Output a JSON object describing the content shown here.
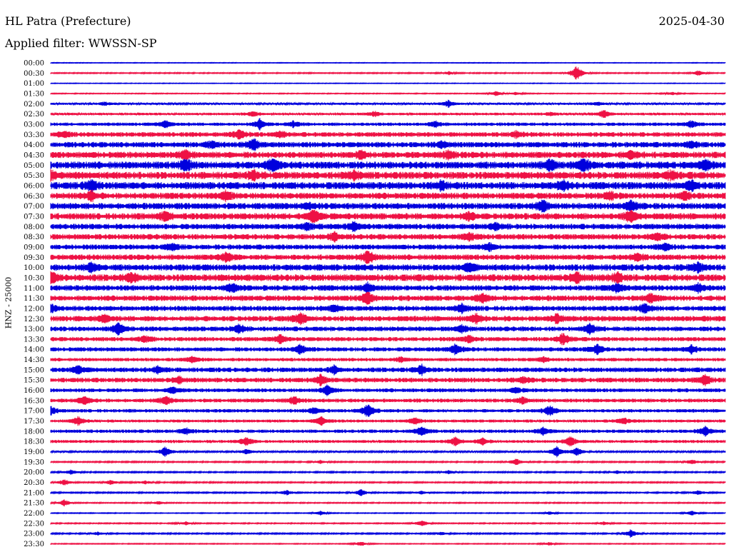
{
  "header": {
    "station": "HL Patra (Prefecture)",
    "date": "2025-04-30",
    "filter": "Applied filter: WWSSN-SP"
  },
  "chart_data": {
    "type": "line",
    "title": "",
    "ylabel": "HNZ - 25000",
    "xlabel": "",
    "grid": false,
    "legend": "none",
    "colors": {
      "blue": "#0000dd",
      "red": "#ee1144"
    },
    "rows": [
      {
        "label": "00:00",
        "color": "blue",
        "noise": 0.3,
        "events": []
      },
      {
        "label": "00:30",
        "color": "red",
        "noise": 0.5,
        "events": [
          [
            0.78,
            10
          ],
          [
            0.96,
            3
          ],
          [
            0.59,
            2
          ]
        ]
      },
      {
        "label": "01:00",
        "color": "blue",
        "noise": 0.3,
        "events": []
      },
      {
        "label": "01:30",
        "color": "red",
        "noise": 0.4,
        "events": [
          [
            0.66,
            3
          ],
          [
            0.69,
            2
          ],
          [
            0.92,
            2
          ]
        ]
      },
      {
        "label": "02:00",
        "color": "blue",
        "noise": 1.0,
        "events": [
          [
            0.59,
            4
          ],
          [
            0.81,
            2
          ],
          [
            0.08,
            2
          ]
        ]
      },
      {
        "label": "02:30",
        "color": "red",
        "noise": 1.2,
        "events": [
          [
            0.82,
            5
          ],
          [
            0.3,
            3
          ],
          [
            0.48,
            3
          ],
          [
            0.74,
            2
          ]
        ]
      },
      {
        "label": "03:00",
        "color": "blue",
        "noise": 1.6,
        "events": [
          [
            0.31,
            6
          ],
          [
            0.17,
            4
          ],
          [
            0.36,
            3
          ],
          [
            0.95,
            4
          ],
          [
            0.57,
            3
          ]
        ]
      },
      {
        "label": "03:30",
        "color": "red",
        "noise": 2.2,
        "events": [
          [
            0.28,
            5
          ],
          [
            0.34,
            4
          ],
          [
            0.02,
            3
          ],
          [
            0.69,
            3
          ]
        ]
      },
      {
        "label": "04:00",
        "color": "blue",
        "noise": 2.6,
        "events": [
          [
            0.3,
            7
          ],
          [
            0.24,
            4
          ],
          [
            0.58,
            4
          ],
          [
            0.95,
            4
          ]
        ]
      },
      {
        "label": "04:30",
        "color": "red",
        "noise": 3.0,
        "events": [
          [
            0.2,
            5
          ],
          [
            0.86,
            5
          ],
          [
            0.46,
            4
          ],
          [
            0.59,
            4
          ]
        ]
      },
      {
        "label": "05:00",
        "color": "blue",
        "noise": 3.4,
        "events": [
          [
            0.33,
            9
          ],
          [
            0.2,
            7
          ],
          [
            0.79,
            9
          ],
          [
            0.74,
            6
          ],
          [
            0.97,
            7
          ]
        ]
      },
      {
        "label": "05:30",
        "color": "red",
        "noise": 3.4,
        "events": [
          [
            0.0,
            6
          ],
          [
            0.3,
            5
          ],
          [
            0.45,
            5
          ],
          [
            0.92,
            5
          ]
        ]
      },
      {
        "label": "06:00",
        "color": "blue",
        "noise": 3.4,
        "events": [
          [
            0.06,
            6
          ],
          [
            0.58,
            5
          ],
          [
            0.95,
            6
          ],
          [
            0.76,
            5
          ]
        ]
      },
      {
        "label": "06:30",
        "color": "red",
        "noise": 3.0,
        "events": [
          [
            0.06,
            5
          ],
          [
            0.26,
            5
          ],
          [
            0.83,
            4
          ],
          [
            0.94,
            4
          ]
        ]
      },
      {
        "label": "07:00",
        "color": "blue",
        "noise": 3.0,
        "events": [
          [
            0.73,
            7
          ],
          [
            0.86,
            6
          ],
          [
            0.38,
            4
          ]
        ]
      },
      {
        "label": "07:30",
        "color": "red",
        "noise": 3.0,
        "events": [
          [
            0.39,
            8
          ],
          [
            0.17,
            6
          ],
          [
            0.86,
            8
          ],
          [
            0.62,
            5
          ]
        ]
      },
      {
        "label": "08:00",
        "color": "blue",
        "noise": 2.6,
        "events": [
          [
            0.45,
            5
          ],
          [
            0.38,
            4
          ],
          [
            0.66,
            4
          ]
        ]
      },
      {
        "label": "08:30",
        "color": "red",
        "noise": 2.6,
        "events": [
          [
            0.42,
            5
          ],
          [
            0.62,
            4
          ],
          [
            0.9,
            4
          ]
        ]
      },
      {
        "label": "09:00",
        "color": "blue",
        "noise": 2.4,
        "events": [
          [
            0.18,
            4
          ],
          [
            0.65,
            4
          ],
          [
            0.91,
            4
          ]
        ]
      },
      {
        "label": "09:30",
        "color": "red",
        "noise": 2.6,
        "events": [
          [
            0.47,
            8
          ],
          [
            0.26,
            5
          ],
          [
            0.87,
            5
          ]
        ]
      },
      {
        "label": "10:00",
        "color": "blue",
        "noise": 3.0,
        "events": [
          [
            0.06,
            5
          ],
          [
            0.62,
            5
          ],
          [
            0.96,
            5
          ]
        ]
      },
      {
        "label": "10:30",
        "color": "red",
        "noise": 3.2,
        "events": [
          [
            0.0,
            7
          ],
          [
            0.78,
            7
          ],
          [
            0.12,
            5
          ],
          [
            0.84,
            5
          ]
        ]
      },
      {
        "label": "11:00",
        "color": "blue",
        "noise": 2.6,
        "events": [
          [
            0.27,
            6
          ],
          [
            0.47,
            5
          ],
          [
            0.84,
            5
          ],
          [
            0.96,
            5
          ]
        ]
      },
      {
        "label": "11:30",
        "color": "red",
        "noise": 2.6,
        "events": [
          [
            0.47,
            8
          ],
          [
            0.64,
            5
          ],
          [
            0.89,
            5
          ]
        ]
      },
      {
        "label": "12:00",
        "color": "blue",
        "noise": 2.4,
        "events": [
          [
            0.0,
            5
          ],
          [
            0.61,
            5
          ],
          [
            0.88,
            5
          ],
          [
            0.42,
            4
          ]
        ]
      },
      {
        "label": "12:30",
        "color": "red",
        "noise": 2.6,
        "events": [
          [
            0.37,
            8
          ],
          [
            0.63,
            5
          ],
          [
            0.75,
            5
          ],
          [
            0.08,
            4
          ]
        ]
      },
      {
        "label": "13:00",
        "color": "blue",
        "noise": 2.2,
        "events": [
          [
            0.1,
            7
          ],
          [
            0.28,
            5
          ],
          [
            0.8,
            6
          ],
          [
            0.61,
            4
          ]
        ]
      },
      {
        "label": "13:30",
        "color": "red",
        "noise": 2.0,
        "events": [
          [
            0.34,
            5
          ],
          [
            0.76,
            7
          ],
          [
            0.14,
            4
          ],
          [
            0.62,
            4
          ]
        ]
      },
      {
        "label": "14:00",
        "color": "blue",
        "noise": 2.0,
        "events": [
          [
            0.37,
            6
          ],
          [
            0.6,
            6
          ],
          [
            0.81,
            6
          ],
          [
            0.95,
            4
          ]
        ]
      },
      {
        "label": "14:30",
        "color": "red",
        "noise": 1.6,
        "events": [
          [
            0.21,
            4
          ],
          [
            0.52,
            3
          ],
          [
            0.73,
            3
          ]
        ]
      },
      {
        "label": "15:00",
        "color": "blue",
        "noise": 2.2,
        "events": [
          [
            0.04,
            5
          ],
          [
            0.16,
            4
          ],
          [
            0.55,
            5
          ],
          [
            0.42,
            4
          ]
        ]
      },
      {
        "label": "15:30",
        "color": "red",
        "noise": 2.2,
        "events": [
          [
            0.4,
            6
          ],
          [
            0.97,
            7
          ],
          [
            0.19,
            4
          ],
          [
            0.7,
            4
          ]
        ]
      },
      {
        "label": "16:00",
        "color": "blue",
        "noise": 1.8,
        "events": [
          [
            0.41,
            6
          ],
          [
            0.18,
            4
          ],
          [
            0.69,
            3
          ]
        ]
      },
      {
        "label": "16:30",
        "color": "red",
        "noise": 1.8,
        "events": [
          [
            0.05,
            5
          ],
          [
            0.17,
            5
          ],
          [
            0.36,
            5
          ],
          [
            0.7,
            4
          ]
        ]
      },
      {
        "label": "17:00",
        "color": "blue",
        "noise": 1.6,
        "events": [
          [
            0.47,
            8
          ],
          [
            0.74,
            6
          ],
          [
            0.0,
            5
          ],
          [
            0.39,
            4
          ]
        ]
      },
      {
        "label": "17:30",
        "color": "red",
        "noise": 1.4,
        "events": [
          [
            0.04,
            5
          ],
          [
            0.4,
            5
          ],
          [
            0.54,
            4
          ],
          [
            0.85,
            4
          ]
        ]
      },
      {
        "label": "18:00",
        "color": "blue",
        "noise": 1.6,
        "events": [
          [
            0.55,
            6
          ],
          [
            0.97,
            6
          ],
          [
            0.73,
            4
          ],
          [
            0.2,
            4
          ]
        ]
      },
      {
        "label": "18:30",
        "color": "red",
        "noise": 1.4,
        "events": [
          [
            0.29,
            5
          ],
          [
            0.6,
            5
          ],
          [
            0.77,
            6
          ],
          [
            0.64,
            4
          ]
        ]
      },
      {
        "label": "19:00",
        "color": "blue",
        "noise": 0.8,
        "events": [
          [
            0.17,
            6
          ],
          [
            0.75,
            7
          ],
          [
            0.78,
            5
          ],
          [
            0.29,
            3
          ]
        ]
      },
      {
        "label": "19:30",
        "color": "red",
        "noise": 0.6,
        "events": [
          [
            0.69,
            4
          ],
          [
            0.4,
            2
          ],
          [
            0.95,
            3
          ]
        ]
      },
      {
        "label": "20:00",
        "color": "blue",
        "noise": 0.6,
        "events": [
          [
            0.03,
            3
          ],
          [
            0.59,
            2
          ],
          [
            0.84,
            2
          ]
        ]
      },
      {
        "label": "20:30",
        "color": "red",
        "noise": 0.6,
        "events": [
          [
            0.02,
            4
          ],
          [
            0.09,
            3
          ],
          [
            0.14,
            2
          ]
        ]
      },
      {
        "label": "21:00",
        "color": "blue",
        "noise": 0.6,
        "events": [
          [
            0.46,
            4
          ],
          [
            0.35,
            3
          ],
          [
            0.55,
            2
          ],
          [
            0.96,
            3
          ]
        ]
      },
      {
        "label": "21:30",
        "color": "red",
        "noise": 0.5,
        "events": [
          [
            0.02,
            4
          ],
          [
            0.16,
            2
          ]
        ]
      },
      {
        "label": "22:00",
        "color": "blue",
        "noise": 0.4,
        "events": [
          [
            0.4,
            3
          ],
          [
            0.95,
            3
          ],
          [
            0.74,
            2
          ]
        ]
      },
      {
        "label": "22:30",
        "color": "red",
        "noise": 0.5,
        "events": [
          [
            0.55,
            4
          ],
          [
            0.2,
            2
          ],
          [
            0.82,
            2
          ]
        ]
      },
      {
        "label": "23:00",
        "color": "blue",
        "noise": 0.6,
        "events": [
          [
            0.86,
            5
          ],
          [
            0.58,
            2
          ],
          [
            0.07,
            2
          ]
        ]
      },
      {
        "label": "23:30",
        "color": "red",
        "noise": 0.4,
        "events": [
          [
            0.46,
            3
          ],
          [
            0.74,
            2
          ]
        ]
      }
    ]
  }
}
